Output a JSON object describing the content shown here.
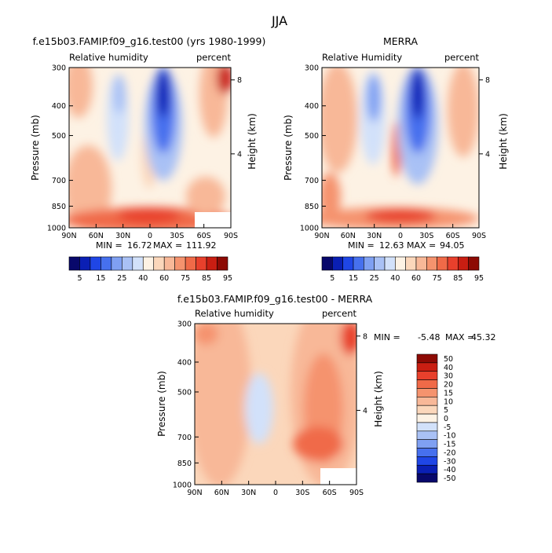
{
  "figure": {
    "title": "JJA"
  },
  "colors": {
    "rh_levels": [
      "#08086b",
      "#0a1fb4",
      "#1f46e6",
      "#4670ee",
      "#7fa0f2",
      "#a9c1f5",
      "#d2e1fa",
      "#fdf2e4",
      "#fbd7bb",
      "#f8b898",
      "#f5936e",
      "#f06a48",
      "#e8402c",
      "#c91e12",
      "#8d0a04"
    ],
    "diff_levels": [
      "#08086b",
      "#0a1fb4",
      "#1f46e6",
      "#4670ee",
      "#7fa0f2",
      "#a9c1f5",
      "#d2e1fa",
      "#fdf2e4",
      "#fbd7bb",
      "#f8b898",
      "#f5936e",
      "#f06a48",
      "#e8402c",
      "#c91e12",
      "#8d0a04"
    ],
    "missing": "#ffffff"
  },
  "chart_data": [
    {
      "type": "heatmap",
      "id": "model",
      "title": "f.e15b03.FAMIP.f09_g16.test00 (yrs 1980-1999)",
      "left_label": "Relative humidity",
      "right_label": "percent",
      "xlabel": "",
      "ylabel": "Pressure (mb)",
      "ylabel_right": "Height (km)",
      "x_ticks": [
        "90N",
        "60N",
        "30N",
        "0",
        "30S",
        "60S",
        "90S"
      ],
      "y_ticks": [
        "300",
        "400",
        "500",
        "700",
        "850",
        "1000"
      ],
      "y_ticks_right": [
        "8",
        "4"
      ],
      "min_label": "MIN =",
      "min_value": "16.72",
      "max_label": "MAX =",
      "max_value": "111.92",
      "colorbar_labels": [
        "5",
        "15",
        "25",
        "40",
        "60",
        "75",
        "85",
        "95"
      ]
    },
    {
      "type": "heatmap",
      "id": "merra",
      "title": "MERRA",
      "left_label": "Relative Humidity",
      "right_label": "percent",
      "xlabel": "",
      "ylabel": "Pressure (mb)",
      "ylabel_right": "Height (km)",
      "x_ticks": [
        "90N",
        "60N",
        "30N",
        "0",
        "30S",
        "60S",
        "90S"
      ],
      "y_ticks": [
        "300",
        "400",
        "500",
        "700",
        "850",
        "1000"
      ],
      "y_ticks_right": [
        "8",
        "4"
      ],
      "min_label": "MIN =",
      "min_value": "12.63",
      "max_label": "MAX =",
      "max_value": "94.05",
      "colorbar_labels": [
        "5",
        "15",
        "25",
        "40",
        "60",
        "75",
        "85",
        "95"
      ]
    },
    {
      "type": "heatmap",
      "id": "diff",
      "title": "f.e15b03.FAMIP.f09_g16.test00 - MERRA",
      "left_label": "Relative humidity",
      "right_label": "percent",
      "xlabel": "",
      "ylabel": "Pressure (mb)",
      "ylabel_right": "Height (km)",
      "x_ticks": [
        "90N",
        "60N",
        "30N",
        "0",
        "30S",
        "60S",
        "90S"
      ],
      "y_ticks": [
        "300",
        "400",
        "500",
        "700",
        "850",
        "1000"
      ],
      "y_ticks_right": [
        "8",
        "4"
      ],
      "min_label": "MIN =",
      "min_value": "-5.48",
      "max_label": "MAX =",
      "max_value": "45.32",
      "colorbar_labels": [
        "50",
        "40",
        "30",
        "20",
        "15",
        "10",
        "5",
        "0",
        "-5",
        "-10",
        "-15",
        "-20",
        "-30",
        "-40",
        "-50"
      ]
    }
  ]
}
